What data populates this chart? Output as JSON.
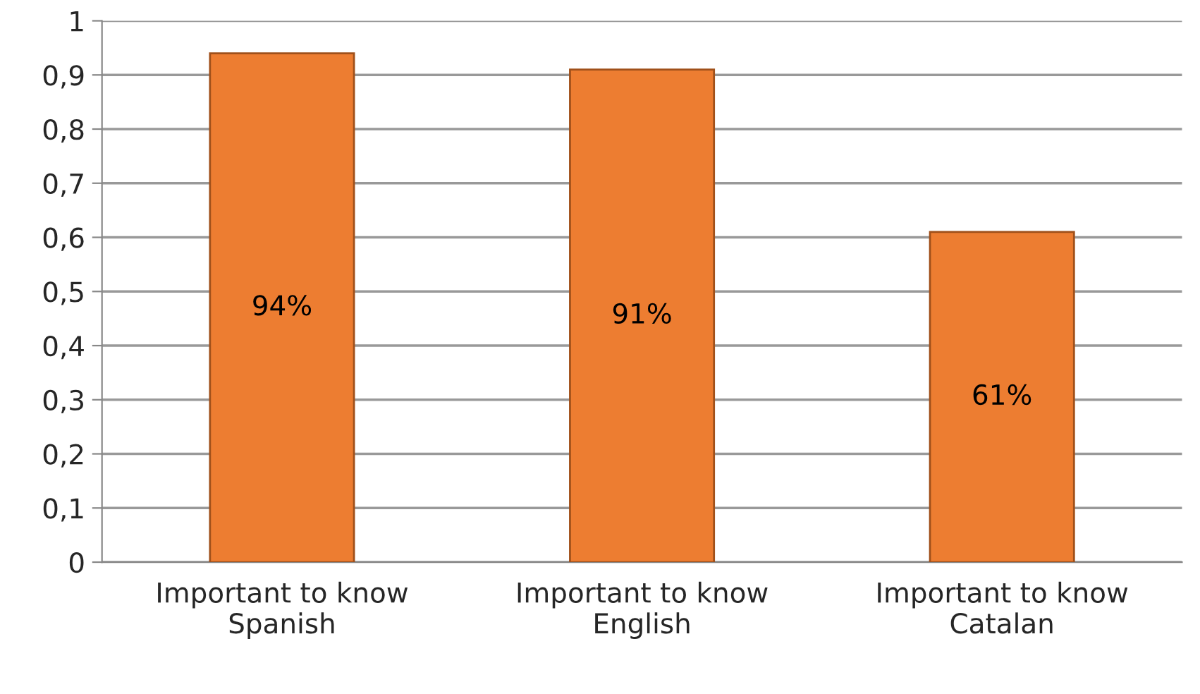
{
  "chart_data": {
    "type": "bar",
    "categories": [
      "Important to know\nSpanish",
      "Important to know\nEnglish",
      "Important to know\nCatalan"
    ],
    "values": [
      0.94,
      0.91,
      0.61
    ],
    "value_labels": [
      "94%",
      "91%",
      "61%"
    ],
    "color": "#ed7d31",
    "ylim": [
      0,
      1
    ],
    "yticks": [
      0,
      {
        "value": 0.1,
        "label": "0,1"
      },
      {
        "value": 0.2,
        "label": "0,2"
      },
      {
        "value": 0.3,
        "label": "0,3"
      },
      {
        "value": 0.4,
        "label": "0,4"
      },
      {
        "value": 0.5,
        "label": "0,5"
      },
      {
        "value": 0.6,
        "label": "0,6"
      },
      {
        "value": 0.7,
        "label": "0,7"
      },
      {
        "value": 0.8,
        "label": "0,8"
      },
      {
        "value": 0.9,
        "label": "0,9"
      },
      1
    ],
    "grid": "y"
  }
}
